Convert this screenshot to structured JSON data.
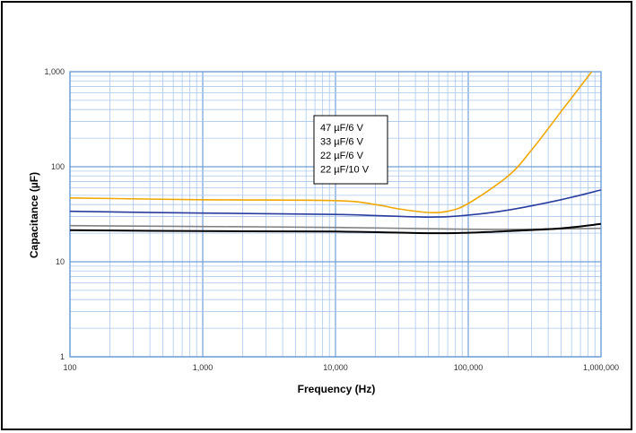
{
  "chart_data": {
    "type": "line",
    "title": "",
    "xlabel": "Frequency (Hz)",
    "ylabel": "Capacitance (µF)",
    "x_scale": "log",
    "y_scale": "log",
    "xlim": [
      100,
      1000000
    ],
    "ylim": [
      1,
      1000
    ],
    "grid": true,
    "x_tick_labels": [
      "100",
      "1,000",
      "10,000",
      "100,000",
      "1,000,000"
    ],
    "x_tick_values": [
      100,
      1000,
      10000,
      100000,
      1000000
    ],
    "y_tick_labels": [
      "1",
      "10",
      "100",
      "1,000"
    ],
    "y_tick_values": [
      1,
      10,
      100,
      1000
    ],
    "legend_position": "center-left",
    "series": [
      {
        "name": "47 µF/6 V",
        "color": "#f0a800",
        "x": [
          100,
          1000,
          10000,
          20000,
          30000,
          50000,
          70000,
          100000,
          200000,
          300000,
          500000,
          700000,
          850000
        ],
        "y": [
          47,
          45,
          44,
          40,
          36,
          33,
          34,
          41,
          80,
          150,
          380,
          700,
          1000
        ]
      },
      {
        "name": "33 µF/6 V",
        "color": "#2a3d9e",
        "x": [
          100,
          1000,
          10000,
          50000,
          100000,
          200000,
          500000,
          1000000
        ],
        "y": [
          34,
          32.5,
          31.5,
          29.5,
          31,
          35,
          45,
          57
        ]
      },
      {
        "name": "22 µF/6 V",
        "color": "#808080",
        "x": [
          100,
          1000,
          10000,
          100000,
          300000,
          1000000
        ],
        "y": [
          24,
          23.5,
          23,
          22,
          22,
          22.5
        ]
      },
      {
        "name": "22 µF/10 V",
        "color": "#000000",
        "x": [
          100,
          1000,
          10000,
          50000,
          100000,
          200000,
          500000,
          1000000
        ],
        "y": [
          21.5,
          21,
          20.8,
          20,
          20.2,
          21,
          22.5,
          25
        ]
      }
    ]
  }
}
